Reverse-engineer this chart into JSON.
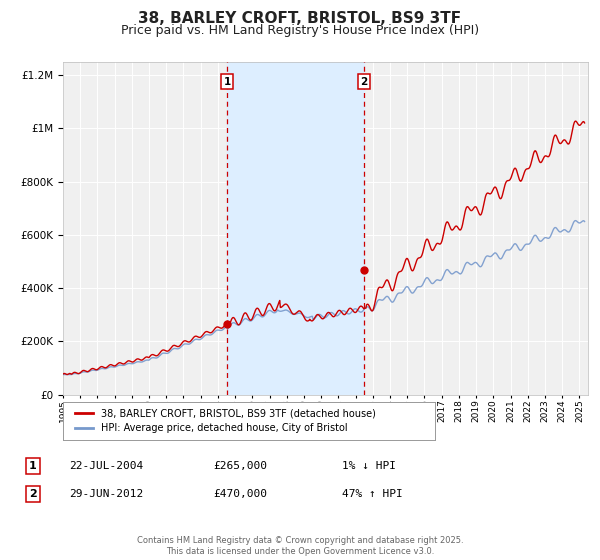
{
  "title": "38, BARLEY CROFT, BRISTOL, BS9 3TF",
  "subtitle": "Price paid vs. HM Land Registry's House Price Index (HPI)",
  "title_fontsize": 11,
  "subtitle_fontsize": 9,
  "bg_color": "#ffffff",
  "plot_bg_color": "#f0f0f0",
  "grid_color": "#ffffff",
  "red_line_color": "#cc0000",
  "blue_line_color": "#7799cc",
  "shade_color": "#ddeeff",
  "marker1_date": 2004.55,
  "marker2_date": 2012.49,
  "marker1_value": 265000,
  "marker2_value": 470000,
  "marker1_text": "22-JUL-2004",
  "marker1_price": "£265,000",
  "marker1_hpi": "1% ↓ HPI",
  "marker2_text": "29-JUN-2012",
  "marker2_price": "£470,000",
  "marker2_hpi": "47% ↑ HPI",
  "legend1": "38, BARLEY CROFT, BRISTOL, BS9 3TF (detached house)",
  "legend2": "HPI: Average price, detached house, City of Bristol",
  "footer": "Contains HM Land Registry data © Crown copyright and database right 2025.\nThis data is licensed under the Open Government Licence v3.0.",
  "ylim": [
    0,
    1250000
  ],
  "xlim_start": 1995,
  "xlim_end": 2025.5
}
